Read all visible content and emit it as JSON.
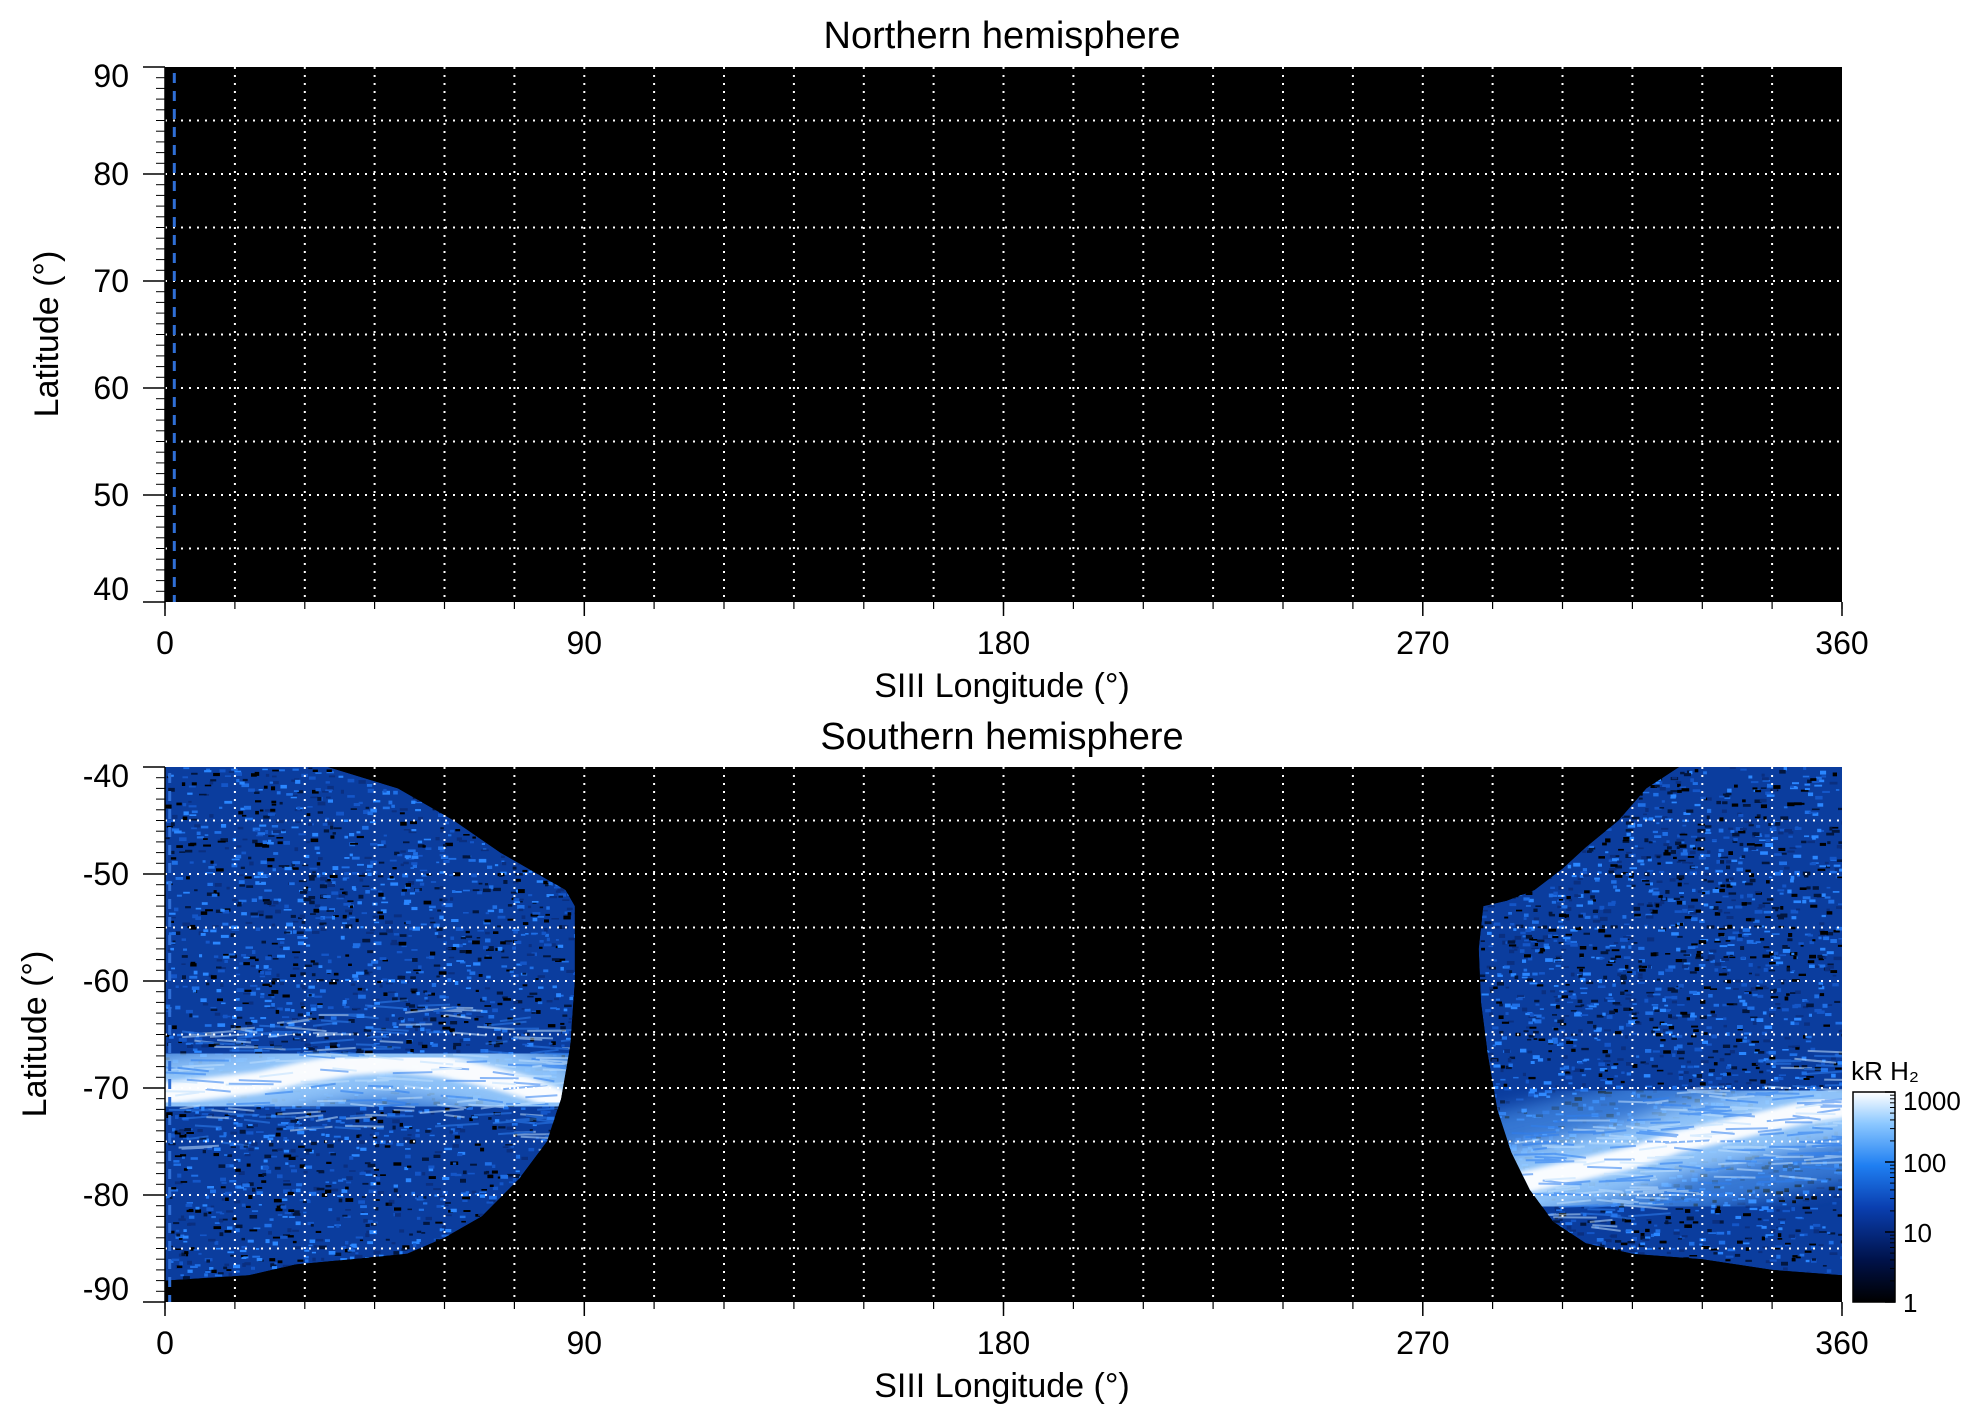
{
  "chart_data": [
    {
      "type": "heatmap",
      "title": "Northern hemisphere",
      "xlabel": "SIII Longitude (°)",
      "ylabel": "Latitude (°)",
      "xlim": [
        0,
        360
      ],
      "ylim": [
        40,
        90
      ],
      "xticks": [
        0,
        90,
        180,
        270,
        360
      ],
      "xtick_labels": [
        "0",
        "90",
        "180",
        "270",
        "360"
      ],
      "yticks": [
        40,
        50,
        60,
        70,
        80,
        90
      ],
      "ytick_labels": [
        "40",
        "50",
        "60",
        "70",
        "80",
        "90"
      ],
      "x_gridlines": [
        15,
        30,
        45,
        60,
        75,
        90,
        105,
        120,
        135,
        150,
        165,
        180,
        195,
        210,
        225,
        240,
        255,
        270,
        285,
        300,
        315,
        330,
        345
      ],
      "y_gridlines": [
        45,
        50,
        55,
        60,
        65,
        70,
        75,
        80,
        85
      ],
      "grid": true,
      "background_color": "#000000",
      "grid_color": "#ffffff",
      "reference_line": {
        "x": 2,
        "color": "#2f6fd6",
        "style": "dashed"
      },
      "emission_regions": []
    },
    {
      "type": "heatmap",
      "title": "Southern hemisphere",
      "xlabel": "SIII Longitude (°)",
      "ylabel": "Latitude (°)",
      "xlim": [
        0,
        360
      ],
      "ylim": [
        -90,
        -40
      ],
      "xticks": [
        0,
        90,
        180,
        270,
        360
      ],
      "xtick_labels": [
        "0",
        "90",
        "180",
        "270",
        "360"
      ],
      "yticks": [
        -90,
        -80,
        -70,
        -60,
        -50,
        -40
      ],
      "ytick_labels": [
        "-90",
        "-80",
        "-70",
        "-60",
        "-50",
        "-40"
      ],
      "x_gridlines": [
        15,
        30,
        45,
        60,
        75,
        90,
        105,
        120,
        135,
        150,
        165,
        180,
        195,
        210,
        225,
        240,
        255,
        270,
        285,
        300,
        315,
        330,
        345
      ],
      "y_gridlines": [
        -85,
        -80,
        -75,
        -70,
        -65,
        -60,
        -55,
        -50,
        -45
      ],
      "grid": true,
      "background_color": "#000000",
      "grid_color": "#ffffff",
      "reference_line": {
        "x": 1,
        "color": "#2f6fd6",
        "style": "dashed"
      },
      "emission_regions": [
        {
          "name": "left-observed-region",
          "boundary": [
            [
              0,
              -40
            ],
            [
              10,
              -40
            ],
            [
              22,
              -40
            ],
            [
              35,
              -40
            ],
            [
              50,
              -42
            ],
            [
              62,
              -45
            ],
            [
              72,
              -48
            ],
            [
              80,
              -50
            ],
            [
              86,
              -51.5
            ],
            [
              88,
              -53
            ],
            [
              88,
              -60
            ],
            [
              87,
              -66
            ],
            [
              85,
              -71
            ],
            [
              82,
              -75
            ],
            [
              76,
              -78.5
            ],
            [
              68,
              -82
            ],
            [
              60,
              -84
            ],
            [
              52,
              -85.5
            ],
            [
              40,
              -86
            ],
            [
              28,
              -86.5
            ],
            [
              18,
              -87.5
            ],
            [
              0,
              -88
            ]
          ],
          "auroral_band": [
            [
              0,
              -70.5
            ],
            [
              10,
              -70
            ],
            [
              20,
              -69.5
            ],
            [
              30,
              -68.5
            ],
            [
              40,
              -67.8
            ],
            [
              50,
              -67.5
            ],
            [
              60,
              -68
            ],
            [
              70,
              -69
            ],
            [
              78,
              -70
            ],
            [
              84,
              -71
            ]
          ],
          "band_peak_kR": 1000,
          "background_kR": 30
        },
        {
          "name": "right-observed-region",
          "boundary": [
            [
              360,
              -40
            ],
            [
              325,
              -40
            ],
            [
              318,
              -42
            ],
            [
              312,
              -45
            ],
            [
              305,
              -47.5
            ],
            [
              300,
              -49.5
            ],
            [
              294,
              -51.5
            ],
            [
              288,
              -52.5
            ],
            [
              283,
              -53
            ],
            [
              282,
              -57
            ],
            [
              282.5,
              -62
            ],
            [
              284,
              -67
            ],
            [
              286,
              -72
            ],
            [
              289,
              -76
            ],
            [
              293,
              -79.5
            ],
            [
              298,
              -82.5
            ],
            [
              305,
              -84.5
            ],
            [
              315,
              -85.5
            ],
            [
              330,
              -86
            ],
            [
              345,
              -87
            ],
            [
              360,
              -87.5
            ]
          ],
          "auroral_band": [
            [
              285,
              -79.5
            ],
            [
              295,
              -78.5
            ],
            [
              305,
              -77.5
            ],
            [
              315,
              -76.5
            ],
            [
              325,
              -75
            ],
            [
              335,
              -74
            ],
            [
              345,
              -73
            ],
            [
              352,
              -72.3
            ],
            [
              360,
              -71.8
            ]
          ],
          "band_peak_kR": 1000,
          "background_kR": 30
        }
      ]
    }
  ],
  "colorbar": {
    "label": "kR H₂",
    "scale": "log",
    "ticks": [
      1,
      10,
      100,
      1000
    ],
    "tick_labels": [
      "1",
      "10",
      "100",
      "1000"
    ],
    "range": [
      1,
      1000
    ],
    "colors": [
      "#000000",
      "#00124a",
      "#0a3fb0",
      "#1f7ff2",
      "#8cc8ff",
      "#ffffff"
    ]
  }
}
